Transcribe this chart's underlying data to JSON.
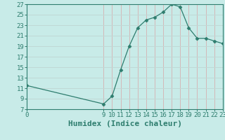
{
  "x_values": [
    0,
    9,
    10,
    11,
    12,
    13,
    14,
    15,
    16,
    17,
    18,
    19,
    20,
    21,
    22,
    23
  ],
  "y_values": [
    11.5,
    8.0,
    9.5,
    14.5,
    19.0,
    22.5,
    24.0,
    24.5,
    25.5,
    27.0,
    26.5,
    22.5,
    20.5,
    20.5,
    20.0,
    19.5
  ],
  "xlim": [
    0,
    23
  ],
  "ylim": [
    7,
    27
  ],
  "xticks": [
    0,
    9,
    10,
    11,
    12,
    13,
    14,
    15,
    16,
    17,
    18,
    19,
    20,
    21,
    22,
    23
  ],
  "yticks": [
    7,
    9,
    11,
    13,
    15,
    17,
    19,
    21,
    23,
    25,
    27
  ],
  "xlabel": "Humidex (Indice chaleur)",
  "line_color": "#2e7d6e",
  "marker_color": "#2e7d6e",
  "bg_color": "#c8ebe8",
  "grid_color_v": "#d4b8b8",
  "grid_color_h": "#c0d8d5",
  "tick_fontsize": 6.5,
  "xlabel_fontsize": 8
}
